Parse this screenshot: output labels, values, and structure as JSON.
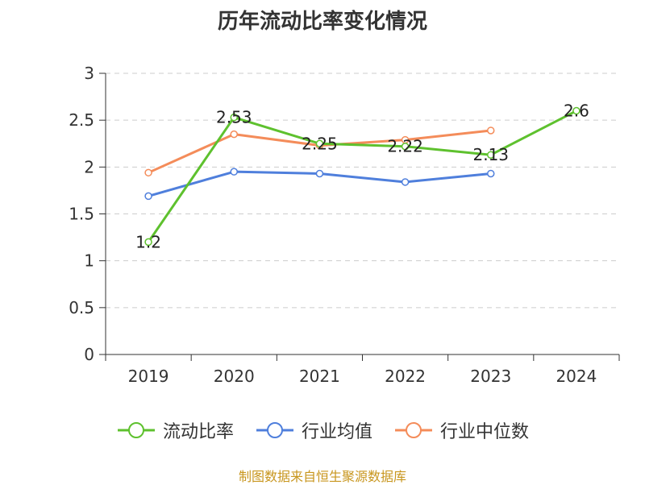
{
  "chart_data": {
    "type": "line",
    "title": "历年流动比率变化情况",
    "categories": [
      "2019",
      "2020",
      "2021",
      "2022",
      "2023",
      "2024"
    ],
    "series": [
      {
        "name": "流动比率",
        "color": "#5ec12e",
        "values": [
          1.2,
          2.53,
          2.25,
          2.22,
          2.13,
          2.6
        ],
        "labels": [
          "1.2",
          "2.53",
          "2.25",
          "2.22",
          "2.13",
          "2.6"
        ]
      },
      {
        "name": "行业均值",
        "color": "#4f7fdc",
        "values": [
          1.69,
          1.95,
          1.93,
          1.84,
          1.93,
          null
        ]
      },
      {
        "name": "行业中位数",
        "color": "#f48c5a",
        "values": [
          1.94,
          2.35,
          2.23,
          2.29,
          2.39,
          null
        ]
      }
    ],
    "y_ticks": [
      "0",
      "0.5",
      "1",
      "1.5",
      "2",
      "2.5",
      "3"
    ],
    "ylim": [
      0,
      3
    ],
    "grid": true,
    "legend_position": "bottom"
  },
  "source": "制图数据来自恒生聚源数据库"
}
